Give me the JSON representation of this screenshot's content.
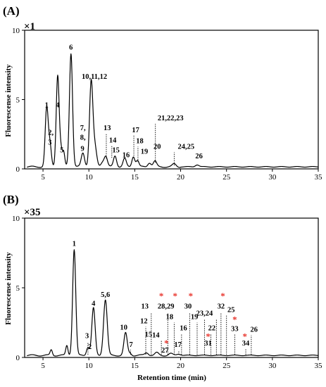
{
  "chart_data": [
    {
      "panel": "(A)",
      "type": "line",
      "scale_label": "×1",
      "ylabel": "Fluorescense intensity",
      "xlabel": "",
      "xlim": [
        3,
        35
      ],
      "ylim": [
        0,
        10
      ],
      "xticks": [
        5,
        10,
        15,
        20,
        25,
        30,
        35
      ],
      "yticks": [
        0,
        5,
        10
      ],
      "baseline": 0.15,
      "peaks": [
        {
          "x": 5.4,
          "y": 4.2,
          "w": 0.16
        },
        {
          "x": 5.75,
          "y": 1.6,
          "w": 0.16
        },
        {
          "x": 6.6,
          "y": 6.6,
          "w": 0.16
        },
        {
          "x": 6.95,
          "y": 1.1,
          "w": 0.14
        },
        {
          "x": 7.25,
          "y": 1.0,
          "w": 0.13
        },
        {
          "x": 8.05,
          "y": 8.2,
          "w": 0.17
        },
        {
          "x": 9.35,
          "y": 1.0,
          "w": 0.18
        },
        {
          "x": 10.25,
          "y": 6.1,
          "w": 0.18
        },
        {
          "x": 10.65,
          "y": 1.4,
          "w": 0.2
        },
        {
          "x": 11.5,
          "y": 0.35,
          "w": 0.2
        },
        {
          "x": 11.85,
          "y": 0.7,
          "w": 0.17
        },
        {
          "x": 12.85,
          "y": 0.8,
          "w": 0.17
        },
        {
          "x": 13.9,
          "y": 0.6,
          "w": 0.17
        },
        {
          "x": 14.85,
          "y": 0.75,
          "w": 0.16
        },
        {
          "x": 15.3,
          "y": 0.45,
          "w": 0.15
        },
        {
          "x": 16.6,
          "y": 0.3,
          "w": 0.18
        },
        {
          "x": 17.2,
          "y": 0.4,
          "w": 0.18
        },
        {
          "x": 19.3,
          "y": 0.2,
          "w": 0.2
        },
        {
          "x": 21.8,
          "y": 0.15,
          "w": 0.2
        }
      ],
      "labels": [
        {
          "text": "1",
          "x": 5.4,
          "y": 4.45
        },
        {
          "text": "2,",
          "x": 5.85,
          "y": 2.45
        },
        {
          "text": "3",
          "x": 5.75,
          "y": 1.75
        },
        {
          "text": "4",
          "x": 6.6,
          "y": 4.45
        },
        {
          "text": "5",
          "x": 7.05,
          "y": 1.2
        },
        {
          "text": "6",
          "x": 8.05,
          "y": 8.6
        },
        {
          "text": "10,11,12",
          "x": 10.6,
          "y": 6.5
        },
        {
          "text": "7,",
          "x": 9.35,
          "y": 2.8
        },
        {
          "text": "8,",
          "x": 9.35,
          "y": 2.1
        },
        {
          "text": "9",
          "x": 9.3,
          "y": 1.3
        },
        {
          "text": "13",
          "x": 12.0,
          "y": 2.8
        },
        {
          "text": "14",
          "x": 12.6,
          "y": 1.9
        },
        {
          "text": "15",
          "x": 12.95,
          "y": 1.2
        },
        {
          "text": "16",
          "x": 14.05,
          "y": 0.85
        },
        {
          "text": "17",
          "x": 15.1,
          "y": 2.65
        },
        {
          "text": "18",
          "x": 15.55,
          "y": 1.85
        },
        {
          "text": "19",
          "x": 16.05,
          "y": 1.1
        },
        {
          "text": "20",
          "x": 17.45,
          "y": 1.45
        },
        {
          "text": "21,22,23",
          "x": 18.9,
          "y": 3.5
        },
        {
          "text": "24,25",
          "x": 20.6,
          "y": 1.45
        },
        {
          "text": "26",
          "x": 22.0,
          "y": 0.75
        }
      ],
      "leaders": [
        {
          "x": 11.9,
          "y1": 0.75,
          "y2": 2.55
        },
        {
          "x": 12.5,
          "y1": 0.8,
          "y2": 1.65
        },
        {
          "x": 14.9,
          "y1": 0.8,
          "y2": 2.4
        },
        {
          "x": 15.35,
          "y1": 0.5,
          "y2": 1.6
        },
        {
          "x": 17.25,
          "y1": 0.45,
          "y2": 3.25
        },
        {
          "x": 19.3,
          "y1": 0.25,
          "y2": 1.2
        }
      ],
      "stars": []
    },
    {
      "panel": "(B)",
      "type": "line",
      "scale_label": "×35",
      "ylabel": "Fluorescense intensity",
      "xlabel": "Retention time (min)",
      "xlim": [
        3,
        35
      ],
      "ylim": [
        0,
        10
      ],
      "xticks": [
        5,
        10,
        15,
        20,
        25,
        30,
        35
      ],
      "yticks": [
        0,
        5,
        10
      ],
      "baseline": 0.15,
      "peaks": [
        {
          "x": 5.9,
          "y": 0.4,
          "w": 0.12
        },
        {
          "x": 7.6,
          "y": 0.7,
          "w": 0.12
        },
        {
          "x": 8.4,
          "y": 7.6,
          "w": 0.17
        },
        {
          "x": 9.9,
          "y": 0.6,
          "w": 0.16
        },
        {
          "x": 10.5,
          "y": 3.4,
          "w": 0.18
        },
        {
          "x": 11.8,
          "y": 4.0,
          "w": 0.2
        },
        {
          "x": 14.0,
          "y": 1.6,
          "w": 0.18
        },
        {
          "x": 14.5,
          "y": 0.15,
          "w": 0.15
        },
        {
          "x": 16.3,
          "y": 0.2,
          "w": 0.2
        },
        {
          "x": 17.4,
          "y": 0.18,
          "w": 0.2
        },
        {
          "x": 18.9,
          "y": 0.12,
          "w": 0.2
        },
        {
          "x": 19.8,
          "y": 0.12,
          "w": 0.2
        }
      ],
      "labels": [
        {
          "text": "1",
          "x": 8.4,
          "y": 8.0
        },
        {
          "text": "2",
          "x": 10.1,
          "y": 0.6
        },
        {
          "text": "3",
          "x": 9.8,
          "y": 1.4
        },
        {
          "text": "4",
          "x": 10.5,
          "y": 3.7
        },
        {
          "text": "5,6",
          "x": 11.8,
          "y": 4.35
        },
        {
          "text": "7",
          "x": 14.6,
          "y": 0.75
        },
        {
          "text": "10",
          "x": 13.8,
          "y": 2.0
        },
        {
          "text": "12",
          "x": 16.0,
          "y": 2.45
        },
        {
          "text": "13",
          "x": 16.1,
          "y": 3.5
        },
        {
          "text": "14",
          "x": 17.3,
          "y": 1.45
        },
        {
          "text": "15",
          "x": 16.5,
          "y": 1.5
        },
        {
          "text": "16",
          "x": 20.3,
          "y": 1.95
        },
        {
          "text": "17",
          "x": 19.7,
          "y": 0.75
        },
        {
          "text": "18",
          "x": 18.8,
          "y": 2.75
        },
        {
          "text": "19",
          "x": 21.5,
          "y": 2.75
        },
        {
          "text": "22",
          "x": 23.4,
          "y": 1.95
        },
        {
          "text": "23,24",
          "x": 22.6,
          "y": 3.0
        },
        {
          "text": "25",
          "x": 25.5,
          "y": 3.25
        },
        {
          "text": "26",
          "x": 28.0,
          "y": 1.85
        },
        {
          "text": "27",
          "x": 18.3,
          "y": 0.35
        },
        {
          "text": "28,29",
          "x": 18.4,
          "y": 3.5
        },
        {
          "text": "30",
          "x": 20.8,
          "y": 3.5
        },
        {
          "text": "31",
          "x": 23.0,
          "y": 0.85
        },
        {
          "text": "32",
          "x": 24.4,
          "y": 3.5
        },
        {
          "text": "33",
          "x": 25.9,
          "y": 1.9
        },
        {
          "text": "34",
          "x": 27.1,
          "y": 0.85
        }
      ],
      "leaders": [
        {
          "x": 9.9,
          "y1": 0.2,
          "y2": 1.1
        },
        {
          "x": 14.55,
          "y1": 0.2,
          "y2": 0.55
        },
        {
          "x": 16.2,
          "y1": 0.2,
          "y2": 2.2
        },
        {
          "x": 16.8,
          "y1": 0.2,
          "y2": 3.2
        },
        {
          "x": 17.9,
          "y1": 0.2,
          "y2": 1.2
        },
        {
          "x": 18.6,
          "y1": 0.2,
          "y2": 3.2
        },
        {
          "x": 19.3,
          "y1": 0.2,
          "y2": 2.5
        },
        {
          "x": 19.8,
          "y1": 0.2,
          "y2": 0.5
        },
        {
          "x": 20.1,
          "y1": 0.2,
          "y2": 1.7
        },
        {
          "x": 21.0,
          "y1": 0.2,
          "y2": 3.2
        },
        {
          "x": 21.8,
          "y1": 0.2,
          "y2": 2.5
        },
        {
          "x": 22.6,
          "y1": 0.2,
          "y2": 2.75
        },
        {
          "x": 23.3,
          "y1": 0.2,
          "y2": 1.7
        },
        {
          "x": 23.9,
          "y1": 0.2,
          "y2": 2.75
        },
        {
          "x": 24.4,
          "y1": 0.2,
          "y2": 3.2
        },
        {
          "x": 25.0,
          "y1": 0.2,
          "y2": 3.0
        },
        {
          "x": 25.9,
          "y1": 0.2,
          "y2": 1.7
        },
        {
          "x": 27.1,
          "y1": 0.2,
          "y2": 0.6
        },
        {
          "x": 27.7,
          "y1": 0.2,
          "y2": 1.6
        }
      ],
      "stars": [
        {
          "x": 18.45,
          "y": 0.8
        },
        {
          "x": 17.9,
          "y": 4.2
        },
        {
          "x": 19.4,
          "y": 4.2
        },
        {
          "x": 21.1,
          "y": 4.2
        },
        {
          "x": 23.0,
          "y": 1.3
        },
        {
          "x": 24.6,
          "y": 4.2
        },
        {
          "x": 25.9,
          "y": 2.5
        },
        {
          "x": 27.0,
          "y": 1.3
        }
      ]
    }
  ],
  "colors": {
    "line": "#000000",
    "star": "#e8322a",
    "text": "#000000"
  }
}
